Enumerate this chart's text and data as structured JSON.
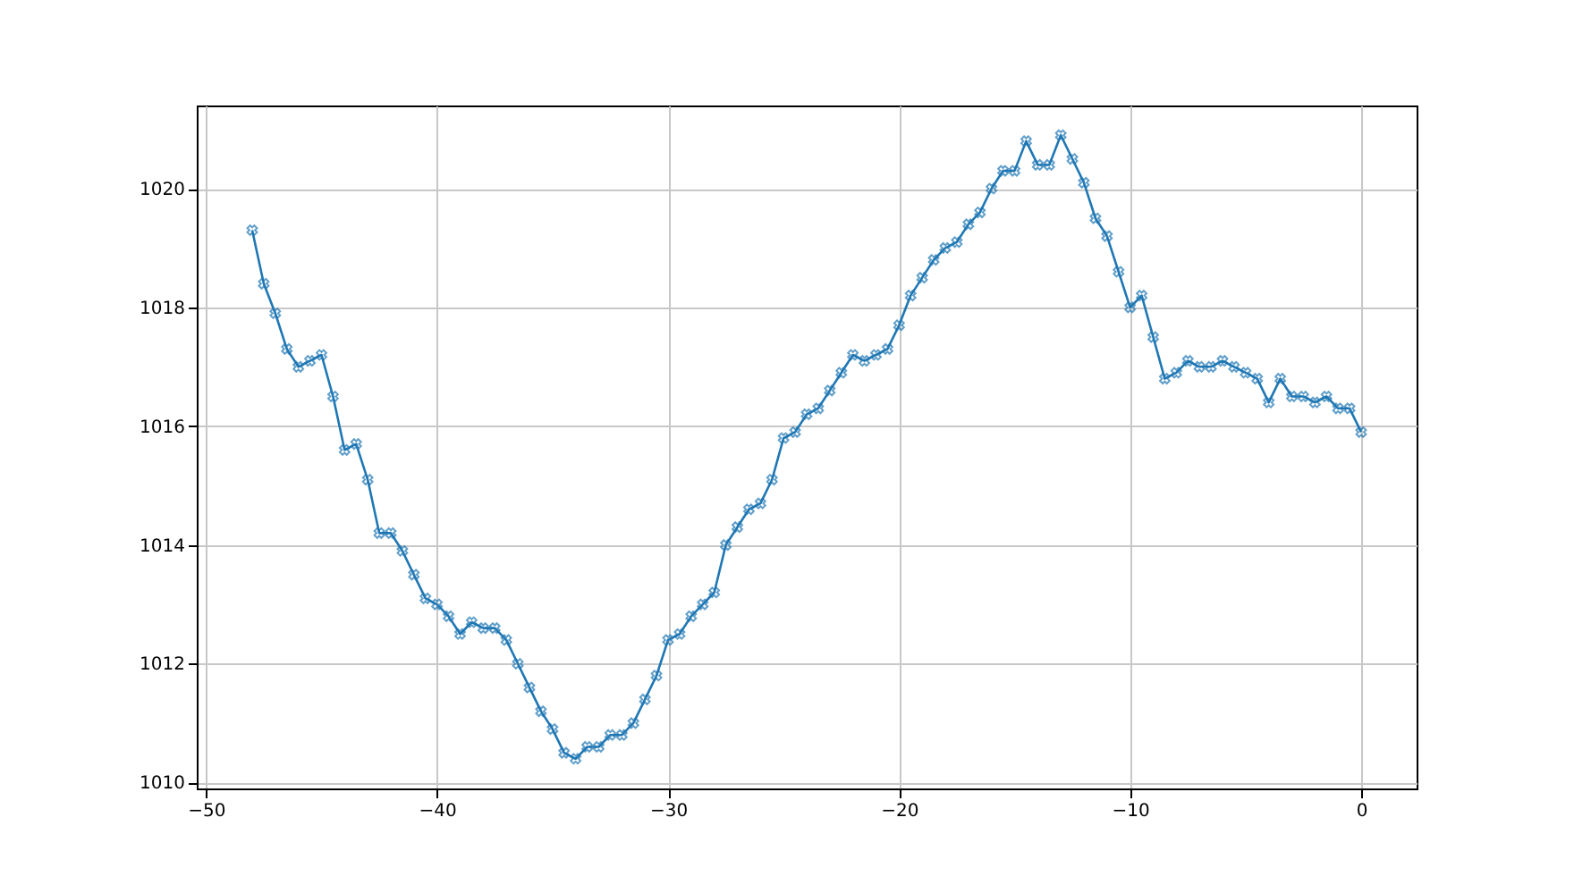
{
  "chart_data": {
    "type": "line",
    "x": [
      -48,
      -47.5,
      -47,
      -46.5,
      -46,
      -45.5,
      -45,
      -44.5,
      -44,
      -43.5,
      -43,
      -42.5,
      -42,
      -41.5,
      -41,
      -40.5,
      -40,
      -39.5,
      -39,
      -38.5,
      -38,
      -37.5,
      -37,
      -36.5,
      -36,
      -35.5,
      -35,
      -34.5,
      -34,
      -33.5,
      -33,
      -32.5,
      -32,
      -31.5,
      -31,
      -30.5,
      -30,
      -29.5,
      -29,
      -28.5,
      -28,
      -27.5,
      -27,
      -26.5,
      -26,
      -25.5,
      -25,
      -24.5,
      -24,
      -23.5,
      -23,
      -22.5,
      -22,
      -21.5,
      -21,
      -20.5,
      -20,
      -19.5,
      -19,
      -18.5,
      -18,
      -17.5,
      -17,
      -16.5,
      -16,
      -15.5,
      -15,
      -14.5,
      -14,
      -13.5,
      -13,
      -12.5,
      -12,
      -11.5,
      -11,
      -10.5,
      -10,
      -9.5,
      -9,
      -8.5,
      -8,
      -7.5,
      -7,
      -6.5,
      -6,
      -5.5,
      -5,
      -4.5,
      -4,
      -3.5,
      -3,
      -2.5,
      -2,
      -1.5,
      -1,
      -0.5,
      0
    ],
    "series": [
      {
        "color": "#1f77b4",
        "values": [
          1019.3,
          1018.4,
          1017.9,
          1017.3,
          1017.0,
          1017.1,
          1017.2,
          1016.5,
          1015.6,
          1015.7,
          1015.1,
          1014.2,
          1014.2,
          1013.9,
          1013.5,
          1013.1,
          1013.0,
          1012.8,
          1012.5,
          1012.7,
          1012.6,
          1012.6,
          1012.4,
          1012.0,
          1011.6,
          1011.2,
          1010.9,
          1010.5,
          1010.4,
          1010.6,
          1010.6,
          1010.8,
          1010.8,
          1011.0,
          1011.4,
          1011.8,
          1012.4,
          1012.5,
          1012.8,
          1013.0,
          1013.2,
          1014.0,
          1014.3,
          1014.6,
          1014.7,
          1015.1,
          1015.8,
          1015.9,
          1016.2,
          1016.3,
          1016.6,
          1016.9,
          1017.2,
          1017.1,
          1017.2,
          1017.3,
          1017.7,
          1018.2,
          1018.5,
          1018.8,
          1019.0,
          1019.1,
          1019.4,
          1019.6,
          1020.0,
          1020.3,
          1020.3,
          1020.8,
          1020.4,
          1020.4,
          1020.9,
          1020.5,
          1020.1,
          1019.5,
          1019.2,
          1018.6,
          1018.0,
          1018.2,
          1017.5,
          1016.8,
          1016.9,
          1017.1,
          1017.0,
          1017.0,
          1017.1,
          1017.0,
          1016.9,
          1016.8,
          1016.4,
          1016.8,
          1016.5,
          1016.5,
          1016.4,
          1016.5,
          1016.3,
          1016.3,
          1015.9
        ]
      }
    ],
    "xlim": [
      -50.4,
      2.4
    ],
    "ylim": [
      1009.9,
      1021.4
    ],
    "xticks": [
      -50,
      -40,
      -30,
      -20,
      -10,
      0
    ],
    "yticks": [
      1010,
      1012,
      1014,
      1016,
      1018,
      1020
    ],
    "grid": true,
    "marker": "cross",
    "line_style": "solid"
  }
}
